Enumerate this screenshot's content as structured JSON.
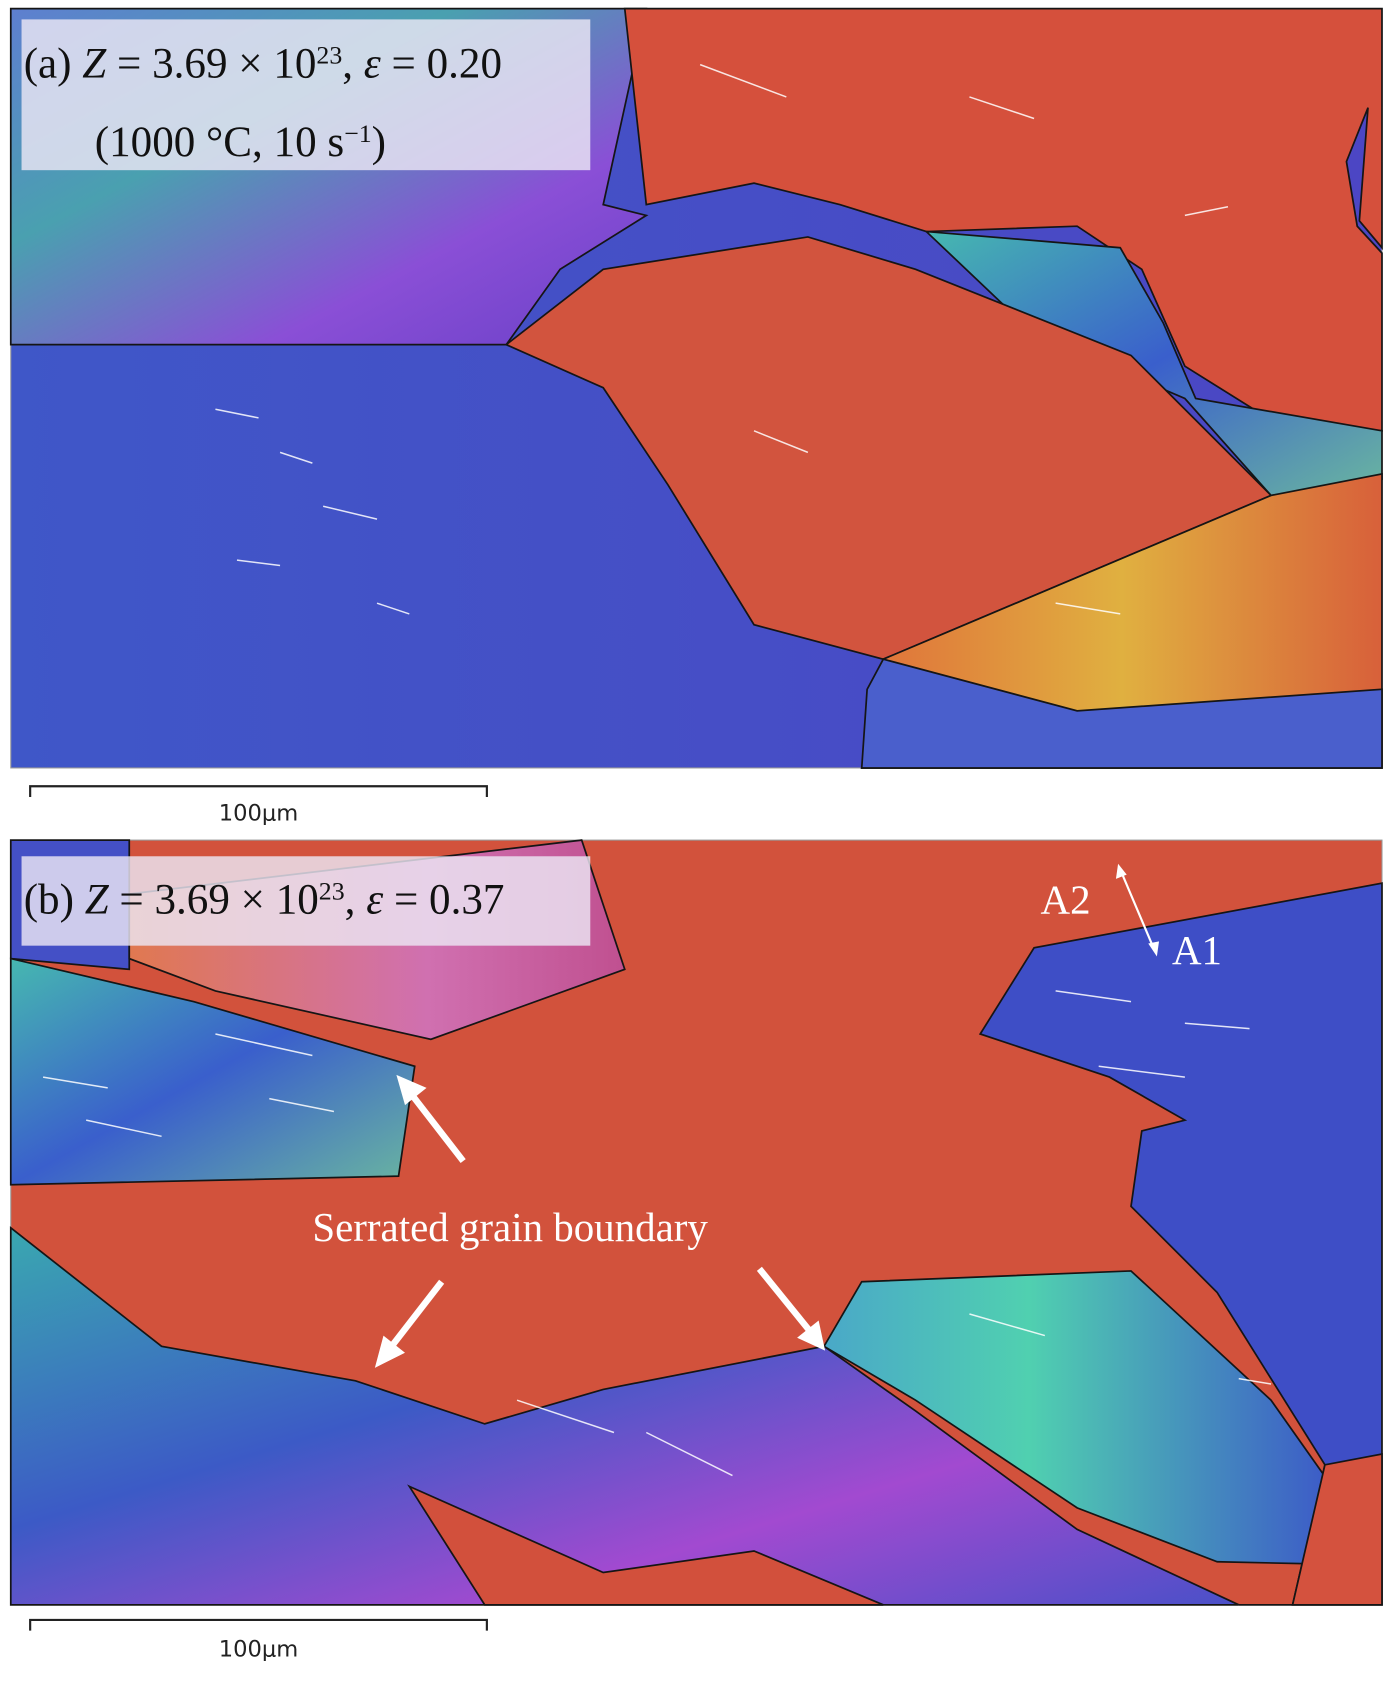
{
  "panels": [
    {
      "caption": {
        "line1": [
          "(a) ",
          "Z",
          " = 3.69 × 10",
          "23",
          ", ",
          "ε",
          " = 0.20"
        ],
        "line2": [
          "(1000 °C, 10 s",
          "−1",
          ")"
        ]
      },
      "scale_bar": "100μm"
    },
    {
      "caption": {
        "line1": [
          "(b) ",
          "Z",
          " = 3.69 × 10",
          "23",
          ", ",
          "ε",
          " = 0.37"
        ]
      },
      "scale_bar": "100μm",
      "annotations": {
        "serrated": "Serrated grain boundary",
        "a2": "A2",
        "a1": "A1"
      }
    }
  ]
}
